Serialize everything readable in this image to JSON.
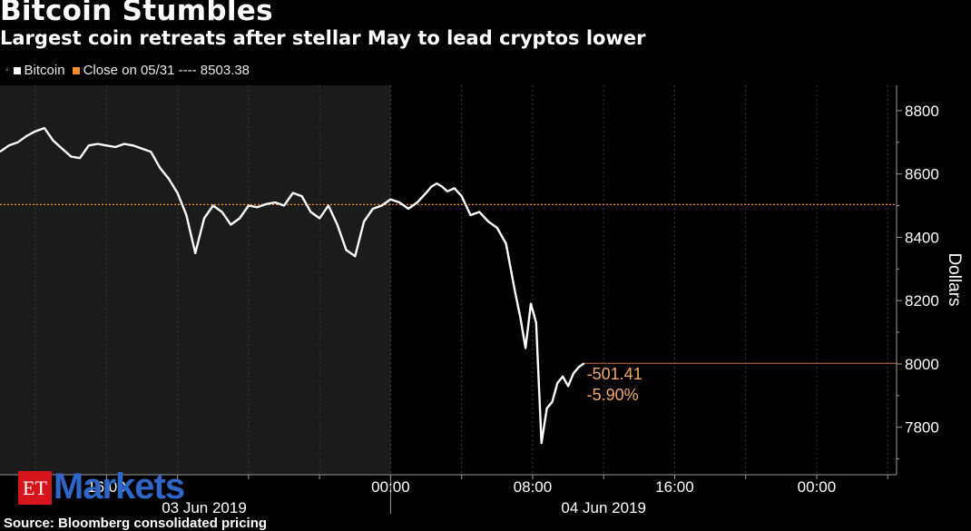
{
  "title": "Bitcoin Stumbles",
  "subtitle": "Largest coin retreats after stellar May to lead cryptos lower",
  "legend": {
    "series_label": "Bitcoin",
    "close_label": "Close on 05/31 ---- 8503.38"
  },
  "source": "Source: Bloomberg consolidated pricing",
  "logo": {
    "et": "ET",
    "markets": "Markets"
  },
  "colors": {
    "background": "#000000",
    "shaded": "#1b1b1b",
    "series": "#ffffff",
    "reference": "#f28c28",
    "grid": "#3a3a3a"
  },
  "chart_data": {
    "type": "line",
    "ylabel": "Dollars",
    "ylim": [
      7650,
      8880
    ],
    "y_ticks": [
      7800,
      8000,
      8200,
      8400,
      8600,
      8800
    ],
    "x_ticks": [
      "16:00",
      "00:00",
      "08:00",
      "16:00",
      "00:00"
    ],
    "x_date_labels": [
      "03 Jun 2019",
      "04 Jun 2019"
    ],
    "x_range_hours": [
      2,
      52.5
    ],
    "shaded_until_hours": 24,
    "reference_line": {
      "label": "Close on 05/31",
      "value": 8503.38
    },
    "last_value_line": 8002,
    "annotations": [
      "-501.41",
      "-5.90%"
    ],
    "series": [
      {
        "name": "Bitcoin",
        "x_hours": [
          2,
          2.5,
          3,
          3.5,
          4,
          4.5,
          5,
          5.5,
          6,
          6.5,
          7,
          7.5,
          8,
          8.5,
          9,
          9.5,
          10,
          10.5,
          11,
          11.5,
          12,
          12.5,
          13,
          13.5,
          14,
          14.5,
          15,
          15.5,
          16,
          16.5,
          17,
          17.5,
          18,
          18.5,
          19,
          19.5,
          20,
          20.5,
          21,
          21.5,
          22,
          22.5,
          23,
          23.5,
          24,
          24.5,
          25,
          25.5,
          26,
          26.3,
          26.6,
          26.9,
          27.2,
          27.6,
          28,
          28.5,
          29,
          29.5,
          30,
          30.5,
          31
        ],
        "values": [
          8670,
          8690,
          8700,
          8720,
          8735,
          8745,
          8705,
          8680,
          8655,
          8650,
          8690,
          8695,
          8690,
          8685,
          8695,
          8690,
          8680,
          8670,
          8620,
          8585,
          8540,
          8470,
          8350,
          8460,
          8500,
          8480,
          8440,
          8460,
          8500,
          8495,
          8505,
          8510,
          8500,
          8540,
          8530,
          8480,
          8460,
          8500,
          8440,
          8360,
          8340,
          8450,
          8490,
          8500,
          8520,
          8510,
          8490,
          8510,
          8540,
          8560,
          8570,
          8560,
          8545,
          8555,
          8530,
          8470,
          8480,
          8450,
          8430,
          8380,
          8230
        ]
      }
    ],
    "series_tail": {
      "x_hours": [
        31.3,
        31.6,
        31.9,
        32.2,
        32.5,
        32.8,
        33.1,
        33.4,
        33.7,
        34,
        34.3,
        34.6,
        34.9
      ],
      "values": [
        8150,
        8050,
        8190,
        8130,
        7750,
        7860,
        7880,
        7940,
        7960,
        7930,
        7970,
        7990,
        8002
      ]
    }
  }
}
